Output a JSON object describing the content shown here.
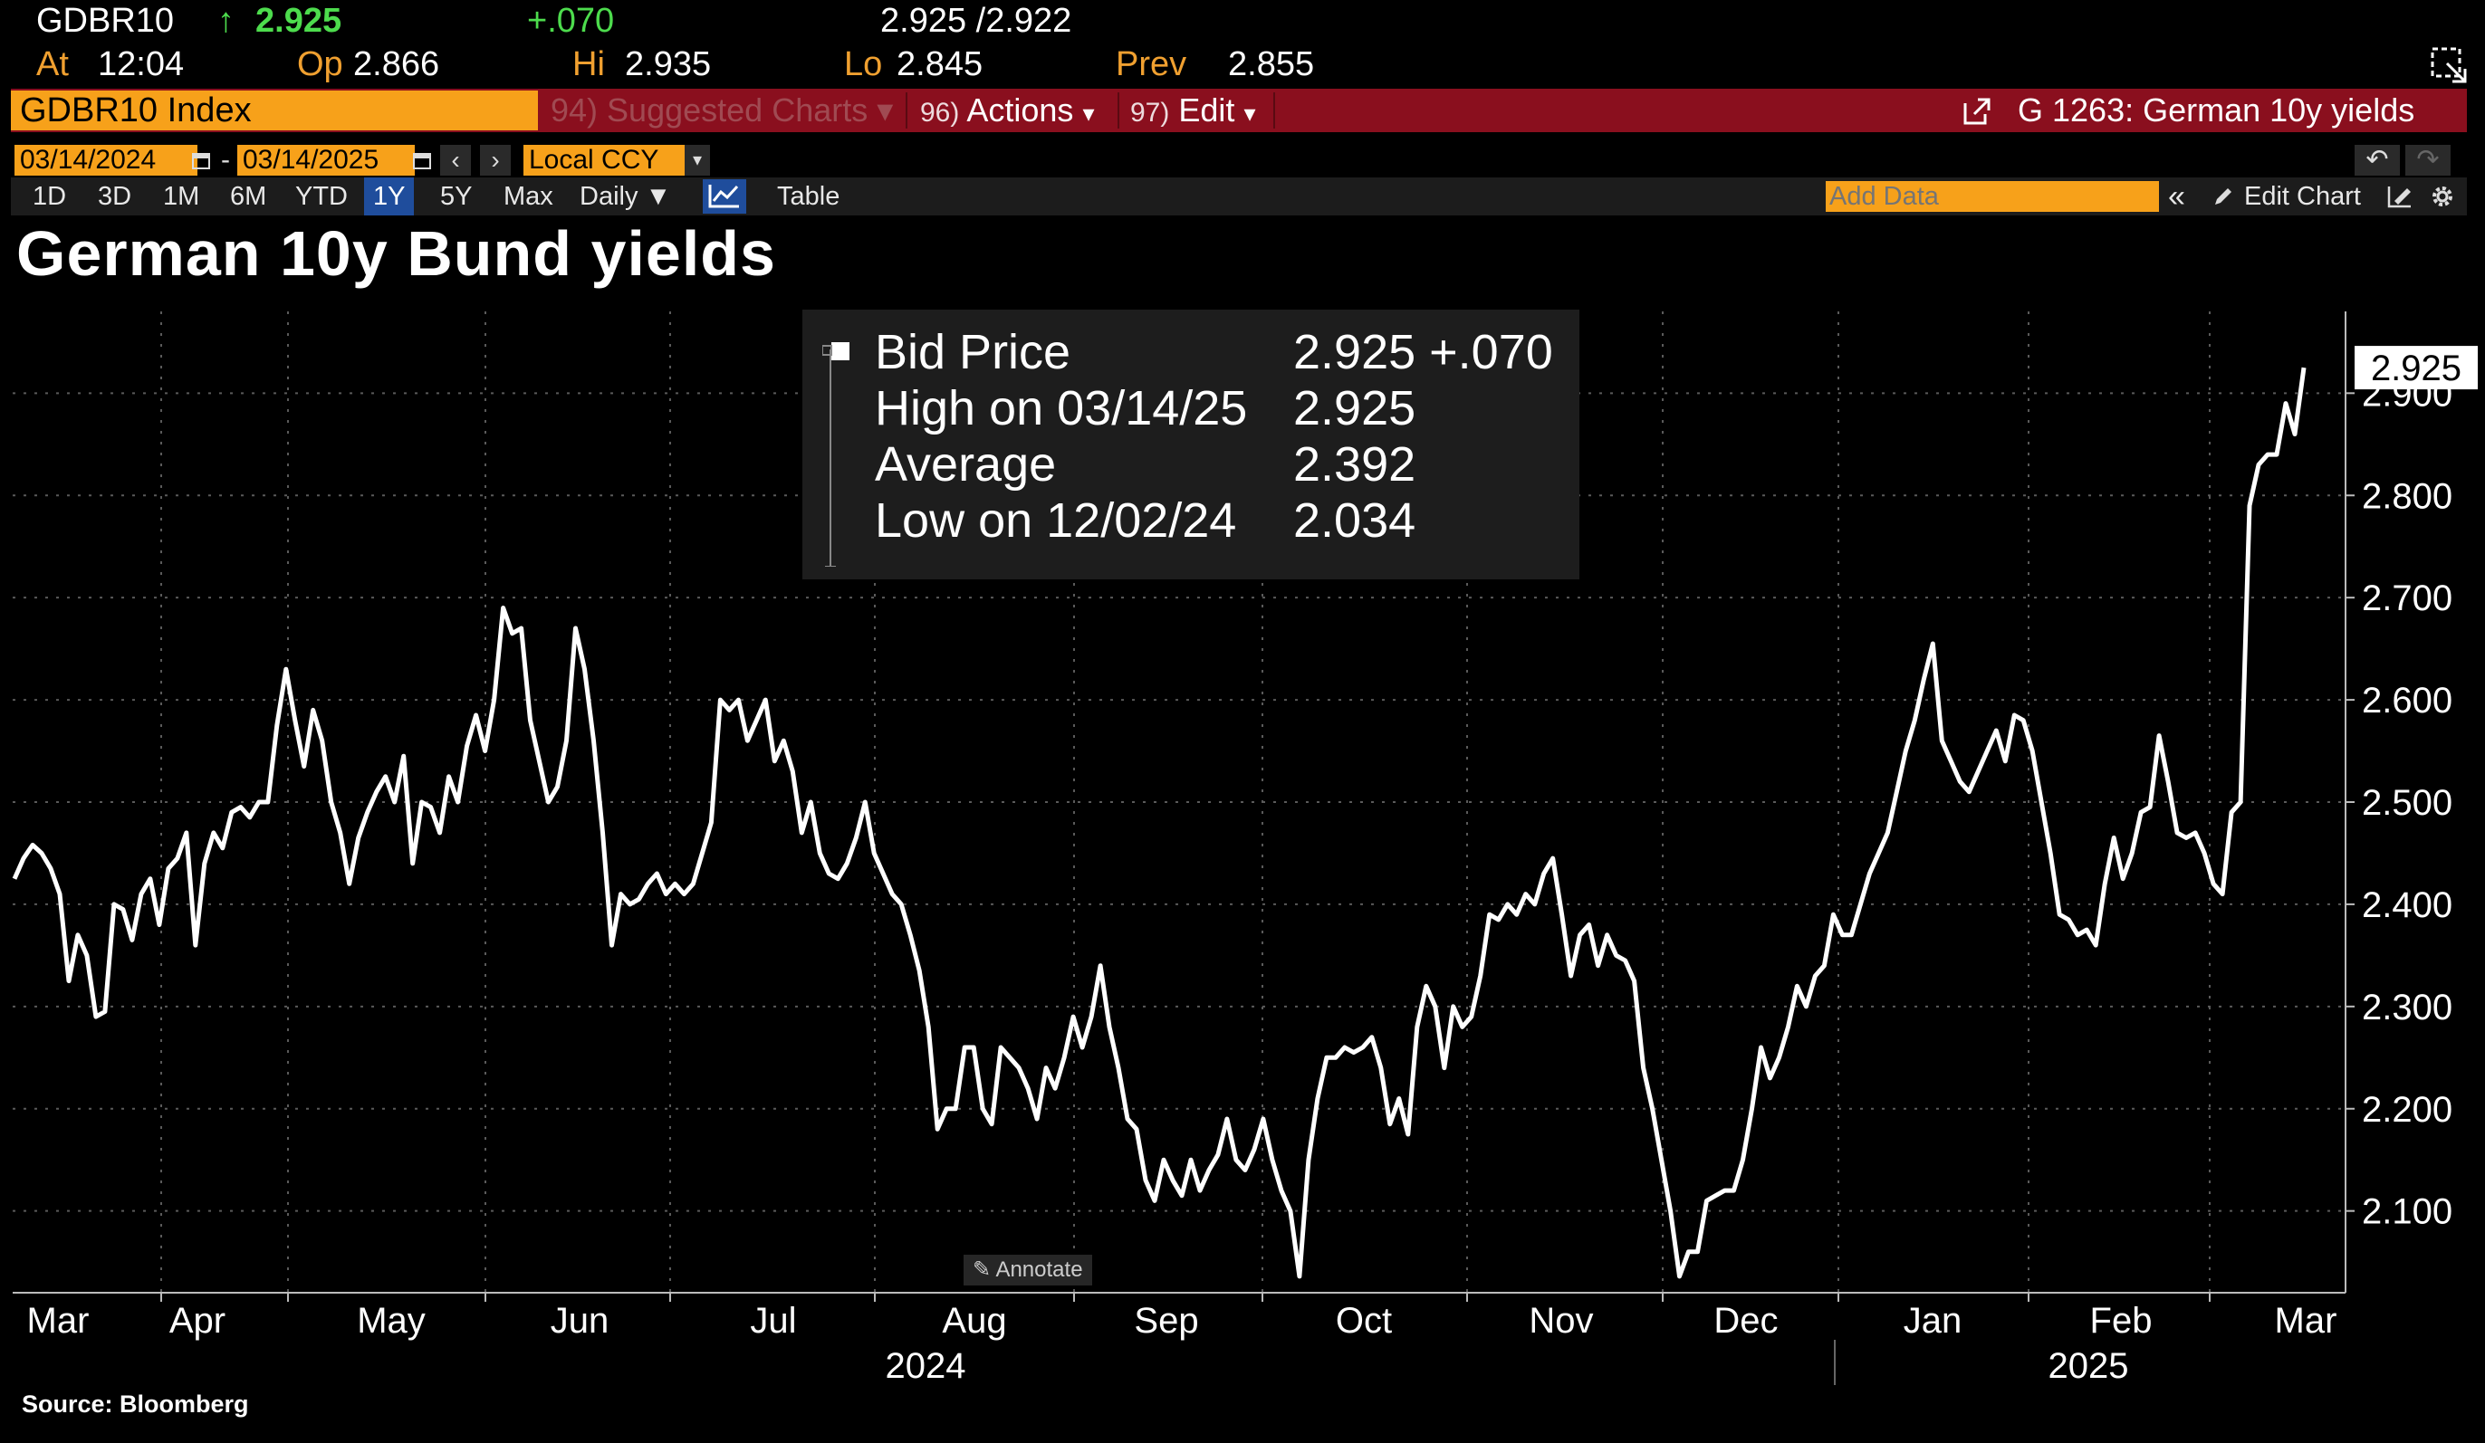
{
  "quote": {
    "ticker": "GDBR10",
    "arrow": "↑",
    "last": "2.925",
    "change": "+.070",
    "bid_ask": "2.925 /2.922",
    "at_label": "At",
    "at_value": "12:04",
    "op_label": "Op",
    "op_value": "2.866",
    "hi_label": "Hi",
    "hi_value": "2.935",
    "lo_label": "Lo",
    "lo_value": "2.845",
    "prev_label": "Prev",
    "prev_value": "2.855"
  },
  "menu": {
    "security": "GDBR10 Index",
    "suggested_num": "94)",
    "suggested": "Suggested Charts",
    "actions_num": "96)",
    "actions": "Actions",
    "edit_num": "97)",
    "edit": "Edit",
    "chart_ref": "G 1263: German 10y yields"
  },
  "controls": {
    "start_date": "03/14/2024",
    "end_date": "03/14/2025",
    "dash": "-",
    "currency": "Local CCY",
    "periods": [
      "1D",
      "3D",
      "1M",
      "6M",
      "YTD",
      "1Y",
      "5Y",
      "Max"
    ],
    "selected_period": "1Y",
    "frequency": "Daily",
    "table": "Table",
    "add_data_placeholder": "Add Data",
    "edit_chart": "Edit Chart"
  },
  "legend": {
    "rows": [
      {
        "label": "Bid Price",
        "value": "2.925 +.070"
      },
      {
        "label": "High on 03/14/25",
        "value": "2.925"
      },
      {
        "label": "Average",
        "value": "2.392"
      },
      {
        "label": "Low on 12/02/24",
        "value": "2.034"
      }
    ]
  },
  "annotate": "Annotate",
  "source": "Source: Bloomberg",
  "chart_data": {
    "type": "line",
    "title": "German 10y Bund yields",
    "series": [
      {
        "name": "Bid Price",
        "color": "#ffffff",
        "last_label": "2.925",
        "values": [
          2.425,
          2.445,
          2.458,
          2.45,
          2.435,
          2.41,
          2.325,
          2.37,
          2.35,
          2.29,
          2.295,
          2.4,
          2.395,
          2.365,
          2.41,
          2.425,
          2.38,
          2.435,
          2.445,
          2.47,
          2.36,
          2.44,
          2.47,
          2.455,
          2.49,
          2.495,
          2.485,
          2.5,
          2.5,
          2.575,
          2.63,
          2.58,
          2.535,
          2.59,
          2.56,
          2.5,
          2.47,
          2.42,
          2.465,
          2.49,
          2.51,
          2.525,
          2.5,
          2.545,
          2.44,
          2.5,
          2.495,
          2.47,
          2.525,
          2.5,
          2.555,
          2.585,
          2.55,
          2.6,
          2.69,
          2.665,
          2.67,
          2.58,
          2.54,
          2.5,
          2.515,
          2.56,
          2.67,
          2.63,
          2.56,
          2.47,
          2.36,
          2.41,
          2.4,
          2.405,
          2.42,
          2.43,
          2.41,
          2.42,
          2.41,
          2.42,
          2.45,
          2.48,
          2.6,
          2.59,
          2.6,
          2.56,
          2.58,
          2.6,
          2.54,
          2.56,
          2.53,
          2.47,
          2.5,
          2.45,
          2.43,
          2.425,
          2.44,
          2.465,
          2.5,
          2.45,
          2.43,
          2.41,
          2.4,
          2.37,
          2.335,
          2.28,
          2.18,
          2.2,
          2.2,
          2.26,
          2.26,
          2.2,
          2.185,
          2.26,
          2.25,
          2.24,
          2.22,
          2.19,
          2.24,
          2.22,
          2.25,
          2.29,
          2.26,
          2.29,
          2.34,
          2.28,
          2.24,
          2.19,
          2.18,
          2.13,
          2.11,
          2.15,
          2.13,
          2.115,
          2.15,
          2.12,
          2.14,
          2.155,
          2.19,
          2.15,
          2.14,
          2.16,
          2.19,
          2.15,
          2.12,
          2.1,
          2.036,
          2.15,
          2.21,
          2.25,
          2.25,
          2.26,
          2.255,
          2.26,
          2.27,
          2.24,
          2.185,
          2.21,
          2.175,
          2.28,
          2.32,
          2.3,
          2.24,
          2.3,
          2.28,
          2.29,
          2.33,
          2.39,
          2.385,
          2.4,
          2.39,
          2.41,
          2.4,
          2.43,
          2.445,
          2.39,
          2.33,
          2.37,
          2.38,
          2.34,
          2.37,
          2.35,
          2.345,
          2.325,
          2.24,
          2.2,
          2.15,
          2.1,
          2.036,
          2.06,
          2.06,
          2.11,
          2.115,
          2.12,
          2.12,
          2.15,
          2.2,
          2.26,
          2.23,
          2.25,
          2.28,
          2.32,
          2.3,
          2.33,
          2.34,
          2.39,
          2.37,
          2.37,
          2.4,
          2.43,
          2.45,
          2.47,
          2.51,
          2.55,
          2.58,
          2.62,
          2.655,
          2.56,
          2.54,
          2.52,
          2.51,
          2.53,
          2.55,
          2.57,
          2.54,
          2.585,
          2.58,
          2.55,
          2.5,
          2.45,
          2.39,
          2.385,
          2.37,
          2.375,
          2.36,
          2.42,
          2.465,
          2.425,
          2.45,
          2.49,
          2.495,
          2.565,
          2.52,
          2.47,
          2.465,
          2.47,
          2.45,
          2.42,
          2.41,
          2.49,
          2.5,
          2.79,
          2.83,
          2.84,
          2.84,
          2.89,
          2.86,
          2.925
        ]
      }
    ],
    "x_month_labels": [
      "Mar",
      "Apr",
      "May",
      "Jun",
      "Jul",
      "Aug",
      "Sep",
      "Oct",
      "Nov",
      "Dec",
      "Jan",
      "Feb",
      "Mar"
    ],
    "x_year_labels": [
      "2024",
      "2025"
    ],
    "y_tick_labels": [
      "2.100",
      "2.200",
      "2.300",
      "2.400",
      "2.500",
      "2.600",
      "2.700",
      "2.800",
      "2.900"
    ],
    "ylim": [
      2.02,
      2.98
    ],
    "grid": true,
    "legend_position": "top-center"
  }
}
